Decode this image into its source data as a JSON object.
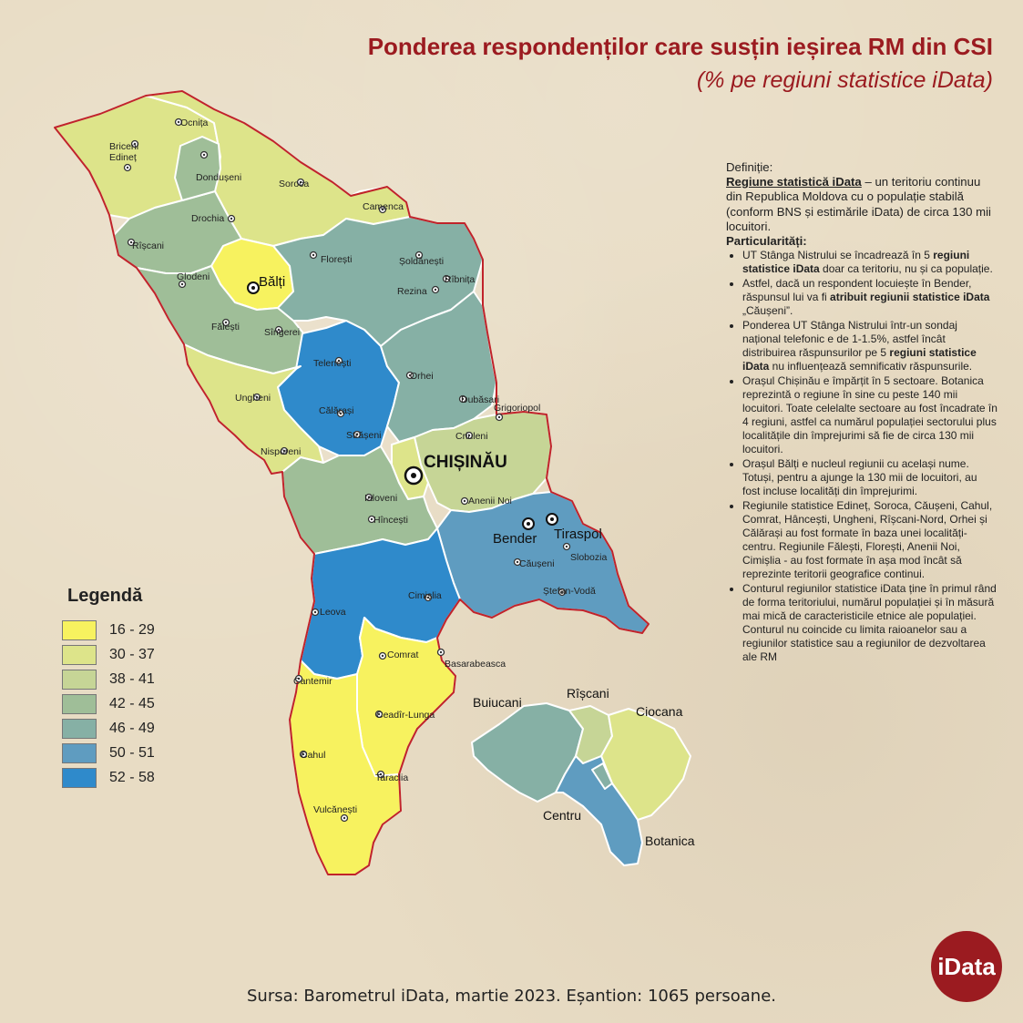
{
  "header": {
    "title": "Ponderea respondenților care susțin ieșirea RM din CSI",
    "subtitle": "(% pe regiuni statistice iData)"
  },
  "legend": {
    "title": "Legendă",
    "items": [
      {
        "range": "16 - 29",
        "color": "#f7f25f"
      },
      {
        "range": "30 - 37",
        "color": "#dde48a"
      },
      {
        "range": "38 - 41",
        "color": "#c6d596"
      },
      {
        "range": "42 - 45",
        "color": "#9fbe98"
      },
      {
        "range": "46 - 49",
        "color": "#86b0a5"
      },
      {
        "range": "50 - 51",
        "color": "#5f9cc0"
      },
      {
        "range": "52 - 58",
        "color": "#2f8acb"
      }
    ]
  },
  "map": {
    "places": [
      "Ocnița",
      "Briceni",
      "Edineț",
      "Dondușeni",
      "Soroca",
      "Camenca",
      "Drochia",
      "Rîșcani",
      "Florești",
      "Șoldănești",
      "Rîbnița",
      "Glodeni",
      "Rezina",
      "Fălești",
      "Sîngerei",
      "Telenești",
      "Orhei",
      "Dubăsari",
      "Călărași",
      "Ungheni",
      "Criuleni",
      "Grigoriopol",
      "Strășeni",
      "Nisporeni",
      "Ialoveni",
      "Anenii Noi",
      "Hîncești",
      "Căușeni",
      "Slobozia",
      "Cimișlia",
      "Ștefan-Vodă",
      "Leova",
      "Basarabeasca",
      "Comrat",
      "Cantemir",
      "Ceadîr-Lunga",
      "Cahul",
      "Taraclia",
      "Vulcănești"
    ],
    "bold_places": {
      "balti": "Bălți",
      "chisinau": "CHIȘINĂU",
      "bender": "Bender",
      "tiraspol": "Tiraspol"
    },
    "sectors": [
      "Buiucani",
      "Rîșcani",
      "Ciocana",
      "Centru",
      "Botanica"
    ]
  },
  "notes": {
    "def_heading": "Definiție:",
    "def_term": "Regiune statistică iData",
    "def_text": " – un teritoriu continuu din Republica Moldova cu o populație stabilă (conform BNS și estimările iData) de circa 130 mii locuitori.",
    "part_heading": "Particularități:",
    "b1_pre": "UT Stânga Nistrului se încadrează în 5 ",
    "b1_bold": "regiuni statistice iData",
    "b1_post": " doar ca teritoriu, nu și ca populație.",
    "b2_pre": "Astfel, dacă un respondent locuiește în Bender, răspunsul lui va fi ",
    "b2_bold": "atribuit regiunii statistice iData",
    "b2_post": " „Căușeni”.",
    "b3_pre": "Ponderea UT Stânga Nistrului într-un sondaj național telefonic e de 1-1.5%, astfel încât distribuirea răspunsurilor pe 5 ",
    "b3_bold": "regiuni statistice iData",
    "b3_post": " nu influențează semnificativ răspunsurile.",
    "b4": "Orașul Chișinău e împărțit în 5 sectoare. Botanica reprezintă o regiune în sine cu peste 140 mii locuitori. Toate celelalte sectoare au fost încadrate în 4 regiuni, astfel ca numărul populației sectorului plus localitățile din împrejurimi să fie de circa 130 mii locuitori.",
    "b5": "Orașul Bălți e nucleul regiunii cu același nume. Totuși, pentru a ajunge la 130 mii de locuitori, au fost incluse localități din împrejurimi.",
    "b6": "Regiunile statistice Edineț, Soroca, Căușeni, Cahul, Comrat, Hâncești, Ungheni, Rîșcani-Nord, Orhei și Călărași au fost formate în baza unei localități-centru. Regiunile Fălești, Florești, Anenii Noi, Cimișlia - au fost formate în așa mod încât să reprezinte teritorii geografice continui.",
    "b7": "Conturul regiunilor statistice iData ține în primul rând de forma teritoriului, numărul populației și în măsură mai mică de caracteristicile etnice ale populației. Conturul nu coincide cu limita raioanelor sau a regiunilor statistice sau a regiunilor de dezvoltarea ale RM"
  },
  "footer": {
    "source": "Sursa: Barometrul iData, martie 2023. Eșantion: 1065 persoane."
  },
  "logo": {
    "text": "iData",
    "color": "#9b1b20"
  }
}
